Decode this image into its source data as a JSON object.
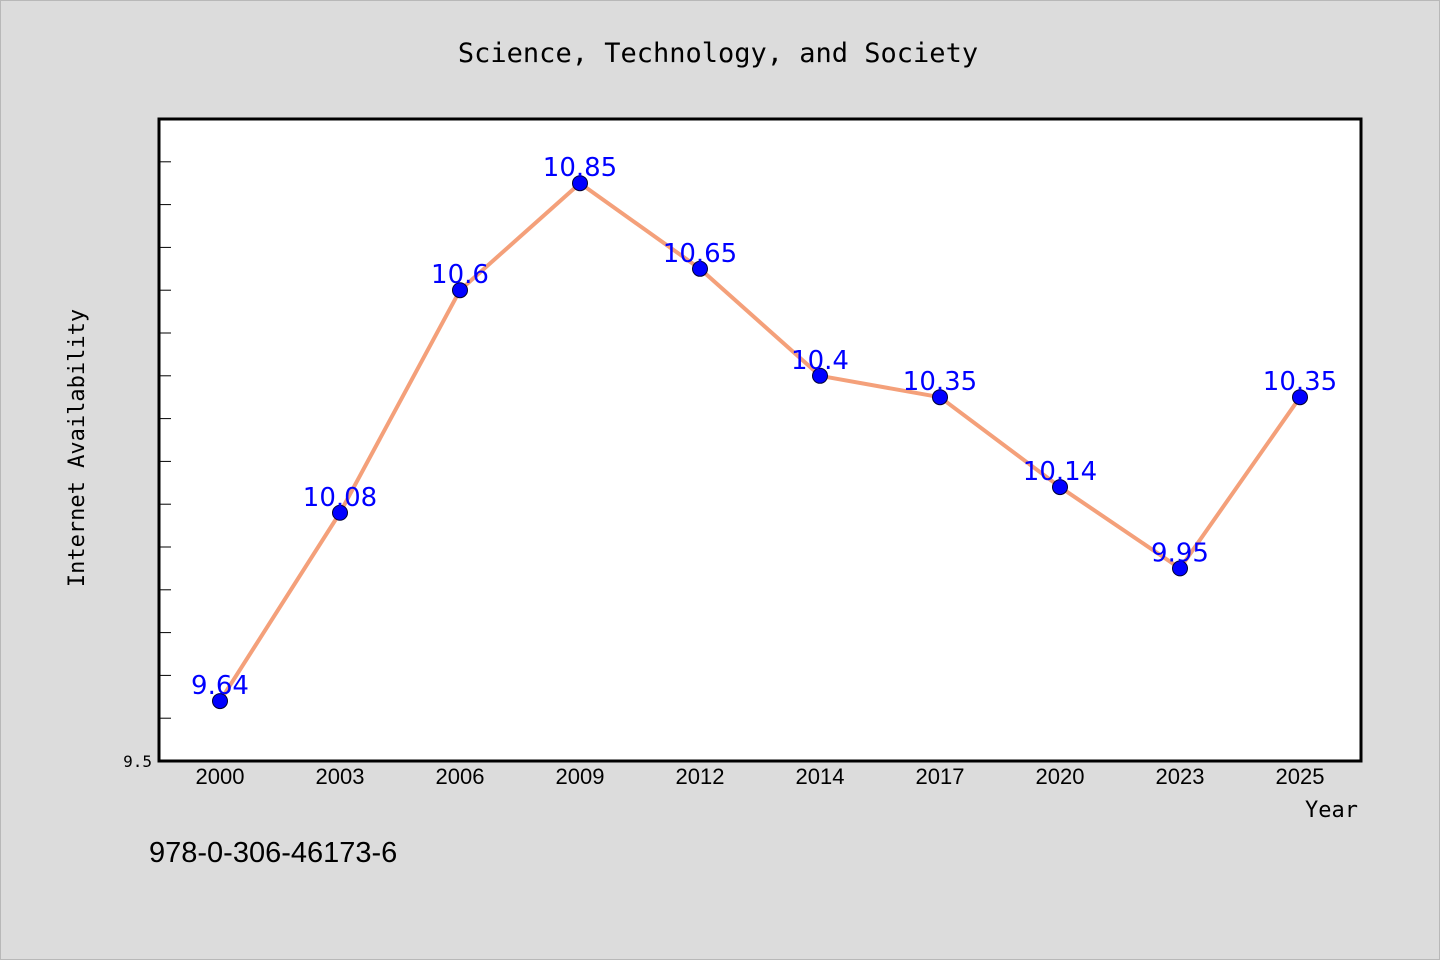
{
  "chart_data": {
    "type": "line",
    "title": "Science, Technology, and Society",
    "xlabel": "Year",
    "ylabel": "Internet Availability",
    "categories": [
      "2000",
      "2003",
      "2006",
      "2009",
      "2012",
      "2014",
      "2017",
      "2020",
      "2023",
      "2025"
    ],
    "series": [
      {
        "values": [
          9.64,
          10.08,
          10.6,
          10.85,
          10.65,
          10.4,
          10.35,
          10.14,
          9.95,
          10.35
        ],
        "data_labels": [
          "9.64",
          "10.08",
          "10.6",
          "10.85",
          "10.65",
          "10.4",
          "10.35",
          "10.14",
          "9.95",
          "10.35"
        ]
      }
    ],
    "ytick_labels": [
      "9.5"
    ],
    "ylim": [
      9.5,
      11.0
    ],
    "grid": false,
    "legend": "none",
    "colors": {
      "line": "#f4a07a",
      "marker": "#0000ff",
      "data_label": "#0000ff",
      "plot_background": "#ffffff",
      "page_background": "#dcdcdc"
    }
  },
  "footer": {
    "isbn": "978-0-306-46173-6"
  }
}
